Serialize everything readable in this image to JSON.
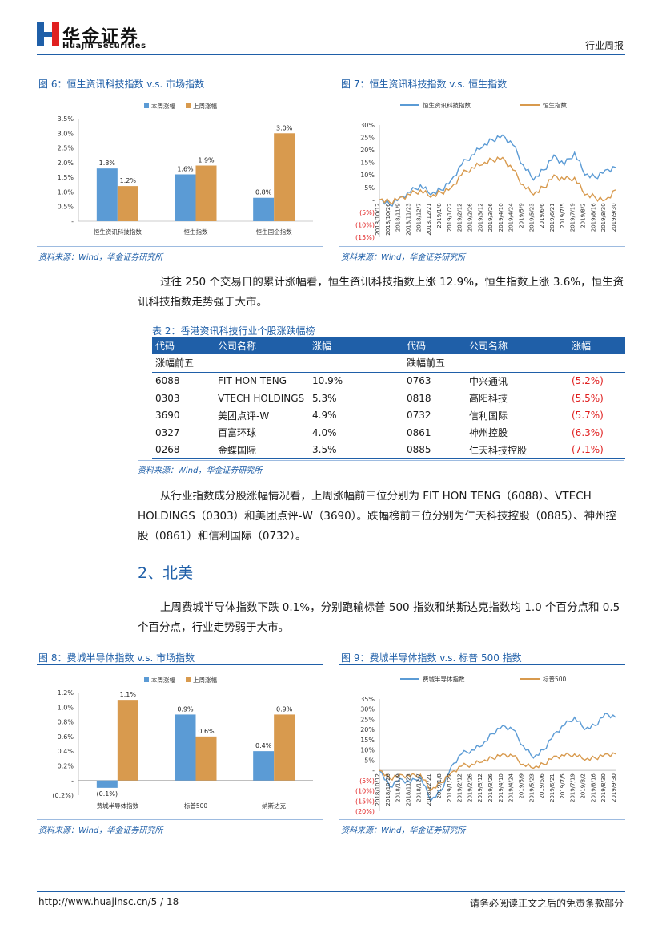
{
  "header": {
    "brand": "华金证券",
    "brand_en": "Huajin Securities",
    "doc_type": "行业周报"
  },
  "fig6": {
    "title": "图 6：恒生资讯科技指数 v.s. 市场指数",
    "source": "资料来源：Wind，华金证券研究所",
    "chart_data": {
      "type": "bar",
      "categories": [
        "恒生资讯科技指数",
        "恒生指数",
        "恒生国企指数"
      ],
      "series": [
        {
          "name": "本周涨幅",
          "values": [
            1.8,
            1.6,
            0.8
          ],
          "labels": [
            "1.8%",
            "1.6%",
            "0.8%"
          ],
          "color": "#5b9bd5"
        },
        {
          "name": "上周涨幅",
          "values": [
            1.2,
            1.9,
            3.0
          ],
          "labels": [
            "1.2%",
            "1.9%",
            "3.0%"
          ],
          "color": "#d89a4e"
        }
      ],
      "ylim": [
        0,
        3.5
      ],
      "yticks": [
        "3.5%",
        "3.0%",
        "2.5%",
        "2.0%",
        "1.5%",
        "1.0%",
        "0.5%",
        "-"
      ]
    }
  },
  "fig7": {
    "title": "图 7：恒生资讯科技指数 v.s. 恒生指数",
    "source": "资料来源：Wind，华金证券研究所",
    "chart_data": {
      "type": "line",
      "x": [
        "2018/10/12",
        "2018/10/26",
        "2018/11/9",
        "2018/11/23",
        "2018/12/7",
        "2018/12/21",
        "2019/1/8",
        "2019/1/22",
        "2019/2/12",
        "2019/2/26",
        "2019/3/12",
        "2019/3/26",
        "2019/4/10",
        "2019/4/24",
        "2019/5/9",
        "2019/5/23",
        "2019/6/6",
        "2019/6/21",
        "2019/7/5",
        "2019/7/19",
        "2019/8/2",
        "2019/8/16",
        "2019/8/30",
        "2019/9/30"
      ],
      "series": [
        {
          "name": "恒生资讯科技指数",
          "color": "#5b9bd5",
          "values": [
            0,
            -2,
            1,
            3,
            6,
            2,
            4,
            8,
            14,
            18,
            21,
            24,
            26,
            22,
            14,
            8,
            12,
            18,
            14,
            19,
            10,
            9,
            12,
            13
          ]
        },
        {
          "name": "恒生指数",
          "color": "#d89a4e",
          "values": [
            0,
            -1,
            1,
            2,
            4,
            1,
            3,
            5,
            10,
            13,
            14,
            16,
            17,
            12,
            6,
            2,
            5,
            10,
            8,
            9,
            2,
            1,
            0,
            4
          ]
        }
      ],
      "ylim": [
        -15,
        30
      ],
      "yticks": [
        "30%",
        "25%",
        "20%",
        "15%",
        "10%",
        "5%",
        "-",
        "(5%)",
        "(10%)",
        "(15%)"
      ]
    }
  },
  "para1": {
    "text": "过往 250 个交易日的累计涨幅看，恒生资讯科技指数上涨 12.9%，恒生指数上涨 3.6%，恒生资讯科技指数走势强于大市。"
  },
  "table2": {
    "title": "表 2：香港资讯科技行业个股涨跌幅榜",
    "headers": [
      "代码",
      "公司名称",
      "涨幅",
      "代码",
      "公司名称",
      "涨幅"
    ],
    "gain_label": "涨幅前五",
    "loss_label": "跌幅前五",
    "rows": [
      {
        "c1": "6088",
        "n1": "FIT HON TENG",
        "v1": "10.9%",
        "c2": "0763",
        "n2": "中兴通讯",
        "v2": "(5.2%)"
      },
      {
        "c1": "0303",
        "n1": "VTECH HOLDINGS",
        "v1": "5.3%",
        "c2": "0818",
        "n2": "高阳科技",
        "v2": "(5.5%)"
      },
      {
        "c1": "3690",
        "n1": "美团点评-W",
        "v1": "4.9%",
        "c2": "0732",
        "n2": "信利国际",
        "v2": "(5.7%)"
      },
      {
        "c1": "0327",
        "n1": "百富环球",
        "v1": "4.0%",
        "c2": "0861",
        "n2": "神州控股",
        "v2": "(6.3%)"
      },
      {
        "c1": "0268",
        "n1": "金蝶国际",
        "v1": "3.5%",
        "c2": "0885",
        "n2": "仁天科技控股",
        "v2": "(7.1%)"
      }
    ],
    "source": "资料来源：Wind，华金证券研究所"
  },
  "para2": {
    "text": "从行业指数成分股涨幅情况看，上周涨幅前三位分别为 FIT HON TENG（6088）、VTECH HOLDINGS（0303）和美团点评-W（3690）。跌幅榜前三位分别为仁天科技控股（0885）、神州控股（0861）和信利国际（0732）。"
  },
  "section2": {
    "title": "2、北美"
  },
  "para3": {
    "text": "上周费城半导体指数下跌 0.1%，分别跑输标普 500 指数和纳斯达克指数均 1.0 个百分点和 0.5 个百分点，行业走势弱于大市。"
  },
  "fig8": {
    "title": "图 8：费城半导体指数 v.s. 市场指数",
    "source": "资料来源：Wind，华金证券研究所",
    "chart_data": {
      "type": "bar",
      "categories": [
        "费城半导体指数",
        "标普500",
        "纳斯达克"
      ],
      "series": [
        {
          "name": "本周涨幅",
          "values": [
            -0.1,
            0.9,
            0.4
          ],
          "labels": [
            "(0.1%)",
            "0.9%",
            "0.4%"
          ],
          "color": "#5b9bd5"
        },
        {
          "name": "上周涨幅",
          "values": [
            1.1,
            0.6,
            0.9
          ],
          "labels": [
            "1.1%",
            "0.6%",
            "0.9%"
          ],
          "color": "#d89a4e"
        }
      ],
      "ylim": [
        -0.2,
        1.2
      ],
      "yticks": [
        "1.2%",
        "1.0%",
        "0.8%",
        "0.6%",
        "0.4%",
        "0.2%",
        "-",
        "(0.2%)"
      ]
    }
  },
  "fig9": {
    "title": "图 9：费城半导体指数 v.s. 标普 500 指数",
    "source": "资料来源：Wind，华金证券研究所",
    "chart_data": {
      "type": "line",
      "x": [
        "2018/10/12",
        "2018/10/26",
        "2018/11/9",
        "2018/11/23",
        "2018/12/7",
        "2018/12/21",
        "2019/1/8",
        "2019/1/22",
        "2019/2/12",
        "2019/2/26",
        "2019/3/12",
        "2019/3/26",
        "2019/4/10",
        "2019/4/24",
        "2019/5/9",
        "2019/5/23",
        "2019/6/6",
        "2019/6/21",
        "2019/7/5",
        "2019/7/19",
        "2019/8/2",
        "2019/8/16",
        "2019/8/30",
        "2019/9/30"
      ],
      "series": [
        {
          "name": "费城半导体指数",
          "color": "#5b9bd5",
          "values": [
            0,
            -8,
            -4,
            -6,
            -3,
            -15,
            -10,
            2,
            8,
            10,
            12,
            18,
            22,
            20,
            12,
            6,
            10,
            18,
            22,
            26,
            20,
            22,
            28,
            26
          ]
        },
        {
          "name": "标普500",
          "color": "#d89a4e",
          "values": [
            0,
            -4,
            -2,
            -3,
            -2,
            -10,
            -6,
            -1,
            2,
            3,
            4,
            6,
            8,
            7,
            3,
            1,
            3,
            7,
            7,
            8,
            5,
            6,
            8,
            8
          ]
        }
      ],
      "ylim": [
        -20,
        35
      ],
      "yticks": [
        "35%",
        "30%",
        "25%",
        "20%",
        "15%",
        "10%",
        "5%",
        "-",
        "(5%)",
        "(10%)",
        "(15%)",
        "(20%)"
      ]
    }
  },
  "footer": {
    "url": "http://www.huajinsc.cn/5 / 18",
    "disclaimer": "请务必阅读正文之后的免责条款部分"
  }
}
